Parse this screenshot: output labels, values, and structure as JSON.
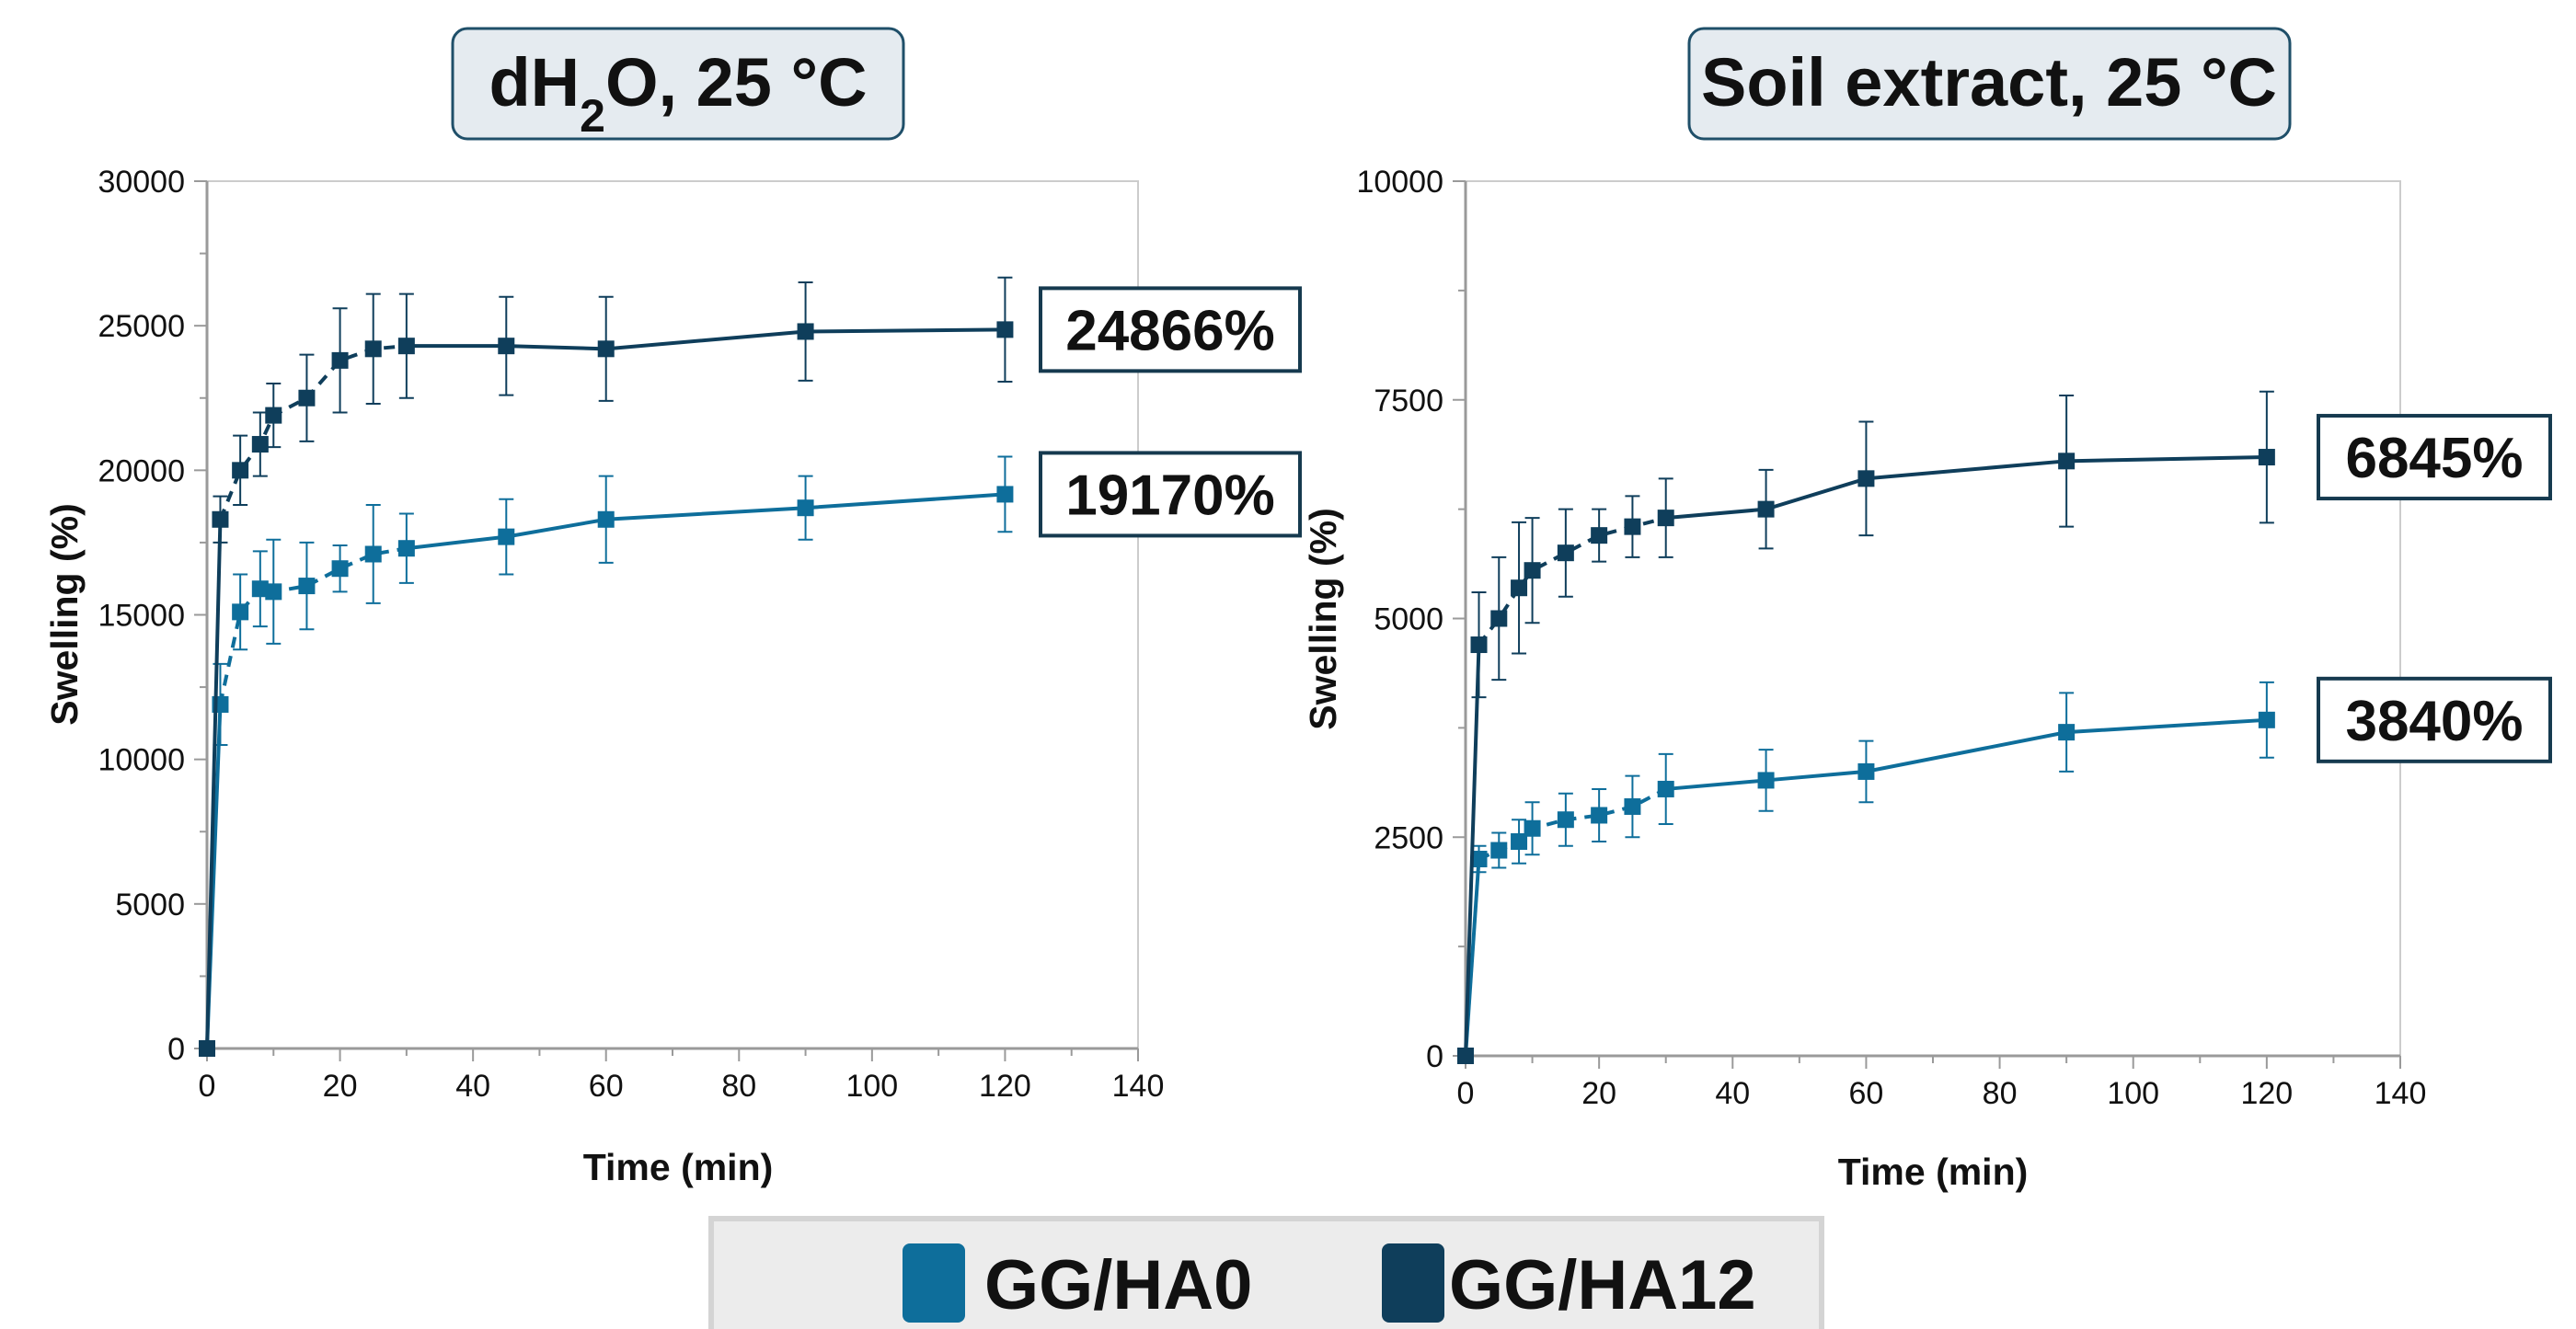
{
  "colors": {
    "GG/HA0": "#0e6e9b",
    "GG/HA12": "#0f3e5b"
  },
  "legend": {
    "items": [
      "GG/HA0",
      "GG/HA12"
    ]
  },
  "chart_data": [
    {
      "type": "line",
      "title": "dH2O, 25 °C",
      "xlabel": "Time (min)",
      "ylabel": "Swelling (%)",
      "xlim": [
        0,
        140
      ],
      "ylim": [
        0,
        30000
      ],
      "xticks": [
        0,
        20,
        40,
        60,
        80,
        100,
        120,
        140
      ],
      "yticks": [
        0,
        5000,
        10000,
        15000,
        20000,
        25000,
        30000
      ],
      "grid": false,
      "series": [
        {
          "name": "GG/HA0",
          "x": [
            0,
            2,
            5,
            8,
            10,
            15,
            20,
            25,
            30,
            45,
            60,
            90,
            120
          ],
          "y": [
            0,
            11900,
            15100,
            15900,
            15800,
            16000,
            16600,
            17100,
            17300,
            17700,
            18300,
            18700,
            19170
          ],
          "err": [
            0,
            1400,
            1300,
            1300,
            1800,
            1500,
            800,
            1700,
            1200,
            1300,
            1500,
            1100,
            1300
          ],
          "end_label": "19170%"
        },
        {
          "name": "GG/HA12",
          "x": [
            0,
            2,
            5,
            8,
            10,
            15,
            20,
            25,
            30,
            45,
            60,
            90,
            120
          ],
          "y": [
            0,
            18300,
            20000,
            20900,
            21900,
            22500,
            23800,
            24200,
            24300,
            24300,
            24200,
            24800,
            24866
          ],
          "err": [
            0,
            800,
            1200,
            1100,
            1100,
            1500,
            1800,
            1900,
            1800,
            1700,
            1800,
            1700,
            1800
          ],
          "end_label": "24866%"
        }
      ]
    },
    {
      "type": "line",
      "title": "Soil extract, 25 °C",
      "xlabel": "Time (min)",
      "ylabel": "Swelling (%)",
      "xlim": [
        0,
        140
      ],
      "ylim": [
        0,
        10000
      ],
      "xticks": [
        0,
        20,
        40,
        60,
        80,
        100,
        120,
        140
      ],
      "yticks": [
        0,
        2500,
        5000,
        7500,
        10000
      ],
      "grid": false,
      "series": [
        {
          "name": "GG/HA0",
          "x": [
            0,
            2,
            5,
            8,
            10,
            15,
            20,
            25,
            30,
            45,
            60,
            90,
            120
          ],
          "y": [
            0,
            2250,
            2350,
            2450,
            2600,
            2700,
            2750,
            2850,
            3050,
            3150,
            3250,
            3700,
            3840
          ],
          "err": [
            0,
            150,
            200,
            250,
            300,
            300,
            300,
            350,
            400,
            350,
            350,
            450,
            430
          ],
          "end_label": "3840%"
        },
        {
          "name": "GG/HA12",
          "x": [
            0,
            2,
            5,
            8,
            10,
            15,
            20,
            25,
            30,
            45,
            60,
            90,
            120
          ],
          "y": [
            0,
            4700,
            5000,
            5350,
            5550,
            5750,
            5950,
            6050,
            6150,
            6250,
            6600,
            6800,
            6845
          ],
          "err": [
            0,
            600,
            700,
            750,
            600,
            500,
            300,
            350,
            450,
            450,
            650,
            750,
            750
          ],
          "end_label": "6845%"
        }
      ]
    }
  ]
}
